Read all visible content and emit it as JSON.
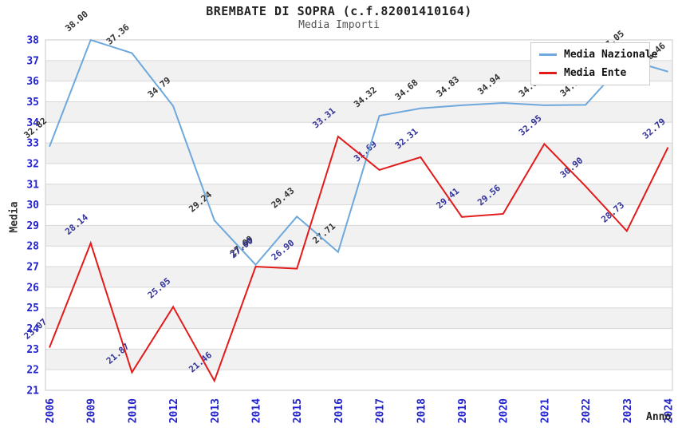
{
  "chart_data": {
    "type": "line",
    "title": "BREMBATE DI SOPRA (c.f.82001410164)",
    "subtitle": "Media Importi",
    "xlabel": "Anno",
    "ylabel": "Media",
    "ylim": [
      21,
      38
    ],
    "ytick_step": 1,
    "grid": "horizontal-bands",
    "legend_position": "top-right",
    "categories": [
      "2006",
      "2009",
      "2010",
      "2012",
      "2013",
      "2014",
      "2015",
      "2016",
      "2017",
      "2018",
      "2019",
      "2020",
      "2021",
      "2022",
      "2023",
      "2024"
    ],
    "series": [
      {
        "name": "Media Nazionale",
        "color": "#6fa8dc",
        "label_color": "#333333",
        "values": [
          32.82,
          38.0,
          37.36,
          34.79,
          29.24,
          27.09,
          29.43,
          27.71,
          34.32,
          34.68,
          34.83,
          34.94,
          34.83,
          34.85,
          37.05,
          36.46
        ]
      },
      {
        "name": "Media Ente",
        "color": "#e31a1a",
        "label_color": "#333399",
        "values": [
          23.07,
          28.14,
          21.87,
          25.05,
          21.46,
          27.0,
          26.9,
          33.31,
          31.69,
          32.31,
          29.41,
          29.56,
          32.95,
          30.9,
          28.73,
          32.79
        ]
      }
    ]
  },
  "colors": {
    "tick_label": "#2323cc",
    "band": "#f1f1f1",
    "gridline": "#d8d8d8",
    "plot_border": "#c9c9c9",
    "subtitle": "#555555"
  }
}
